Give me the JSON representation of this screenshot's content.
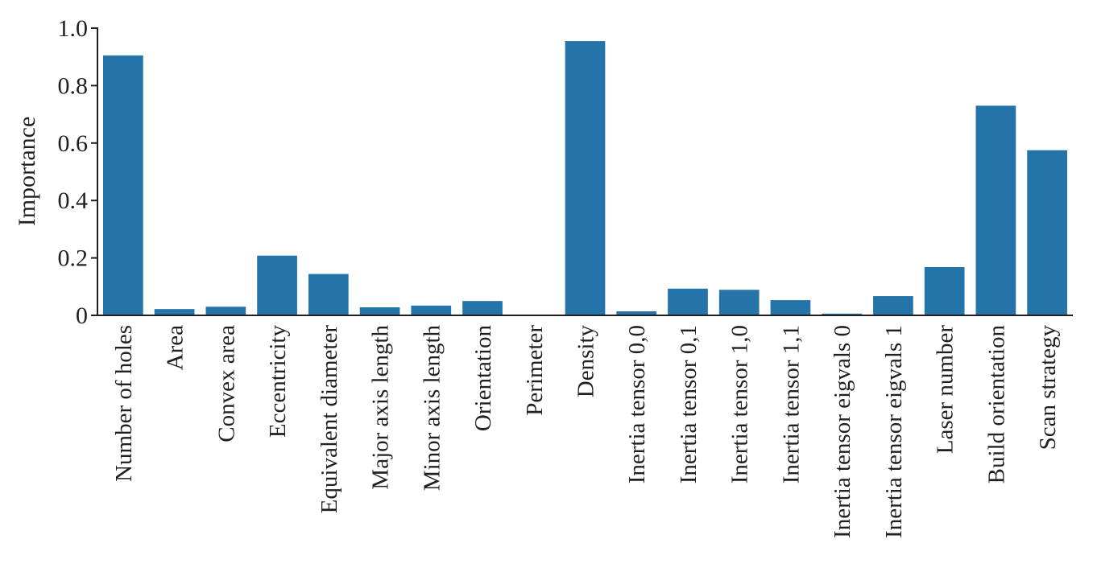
{
  "chart_data": {
    "type": "bar",
    "title": "",
    "xlabel": "",
    "ylabel": "Importance",
    "ylim": [
      0,
      1.0
    ],
    "yticks": [
      0,
      0.2,
      0.4,
      0.6,
      0.8,
      1.0
    ],
    "ytick_labels": [
      "0",
      "0.2",
      "0.4",
      "0.6",
      "0.8",
      "1.0"
    ],
    "grid": false,
    "bar_color": "#2574a9",
    "categories": [
      "Number of holes",
      "Area",
      "Convex area",
      "Eccentricity",
      "Equivalent diameter",
      "Major axis length",
      "Minor axis length",
      "Orientation",
      "Perimeter",
      "Density",
      "Inertia tensor 0,0",
      "Inertia tensor 0,1",
      "Inertia tensor 1,0",
      "Inertia tensor 1,1",
      "Inertia tensor eigvals 0",
      "Inertia tensor eigvals 1",
      "Laser number",
      "Build orientation",
      "Scan strategy"
    ],
    "values": [
      0.905,
      0.022,
      0.03,
      0.208,
      0.144,
      0.028,
      0.034,
      0.05,
      0.0,
      0.955,
      0.014,
      0.093,
      0.089,
      0.053,
      0.006,
      0.067,
      0.168,
      0.73,
      0.575
    ]
  }
}
